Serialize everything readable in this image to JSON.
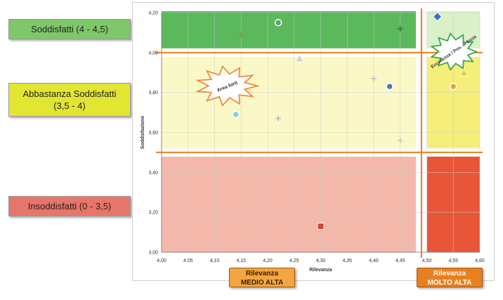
{
  "legend": {
    "green": "Soddisfatti (4 - 4,5)",
    "yellow_line1": "Abbastanza Soddisfatti",
    "yellow_line2": "(3,5 - 4)",
    "red": "Insoddisfatti (0 - 3,5)"
  },
  "bands": {
    "medio_line1": "Rilevanza",
    "medio_line2": "MEDIO ALTA",
    "molto_line1": "Rilevanza",
    "molto_line2": "MOLTO ALTA"
  },
  "colors": {
    "green_zone": "#5cb85c",
    "yellow_zone": "#fbf8c8",
    "yellow_zone_right": "#f5ee7a",
    "red_zone": "#f4b9aa",
    "red_zone_right": "#e8563a",
    "threshold_lines": "#e8801f"
  },
  "chart_data": {
    "type": "scatter",
    "xlabel": "Rilevanza",
    "ylabel": "Soddisfazione",
    "xlim": [
      4.0,
      4.6
    ],
    "ylim": [
      3.0,
      4.2
    ],
    "x_ticks": [
      "4,00",
      "4,05",
      "4,10",
      "4,15",
      "4,20",
      "4,25",
      "4,30",
      "4,35",
      "4,40",
      "4,45",
      "4,50",
      "4,55",
      "4,60"
    ],
    "y_ticks": [
      "3,00",
      "3,20",
      "3,40",
      "3,60",
      "3,80",
      "4,00",
      "4,20"
    ],
    "thresholds": {
      "x": 4.49,
      "y": [
        3.5,
        4.0
      ]
    },
    "grid": true,
    "annotations": [
      {
        "text": "Area forti",
        "x": 4.11,
        "y": 3.84
      },
      {
        "text": "Eccellenza / Pos. di forza",
        "x": 4.54,
        "y": 4.11
      }
    ],
    "points": [
      {
        "x": 4.15,
        "y": 4.09,
        "marker": "cross",
        "color": "#7a9a5a"
      },
      {
        "x": 4.22,
        "y": 4.15,
        "marker": "circle",
        "color": "#5aa07a"
      },
      {
        "x": 4.45,
        "y": 4.12,
        "marker": "cross",
        "color": "#3a7a3a"
      },
      {
        "x": 4.52,
        "y": 4.18,
        "marker": "diamond",
        "color": "#3a6fc8"
      },
      {
        "x": 4.26,
        "y": 3.97,
        "marker": "triangle",
        "color": "#cfcfcf"
      },
      {
        "x": 4.4,
        "y": 3.87,
        "marker": "cross",
        "color": "#c9b9d9"
      },
      {
        "x": 4.43,
        "y": 3.83,
        "marker": "circle",
        "color": "#4a78b8"
      },
      {
        "x": 4.57,
        "y": 3.9,
        "marker": "triangle",
        "color": "#d6d630"
      },
      {
        "x": 4.55,
        "y": 3.83,
        "marker": "circle",
        "color": "#e0a830"
      },
      {
        "x": 4.14,
        "y": 3.69,
        "marker": "circle",
        "color": "#7fd3e6"
      },
      {
        "x": 4.22,
        "y": 3.67,
        "marker": "cross",
        "color": "#b9b9b9"
      },
      {
        "x": 4.45,
        "y": 3.56,
        "marker": "cross",
        "color": "#d8c8a8"
      },
      {
        "x": 4.3,
        "y": 3.13,
        "marker": "square",
        "color": "#d9452e"
      }
    ]
  }
}
